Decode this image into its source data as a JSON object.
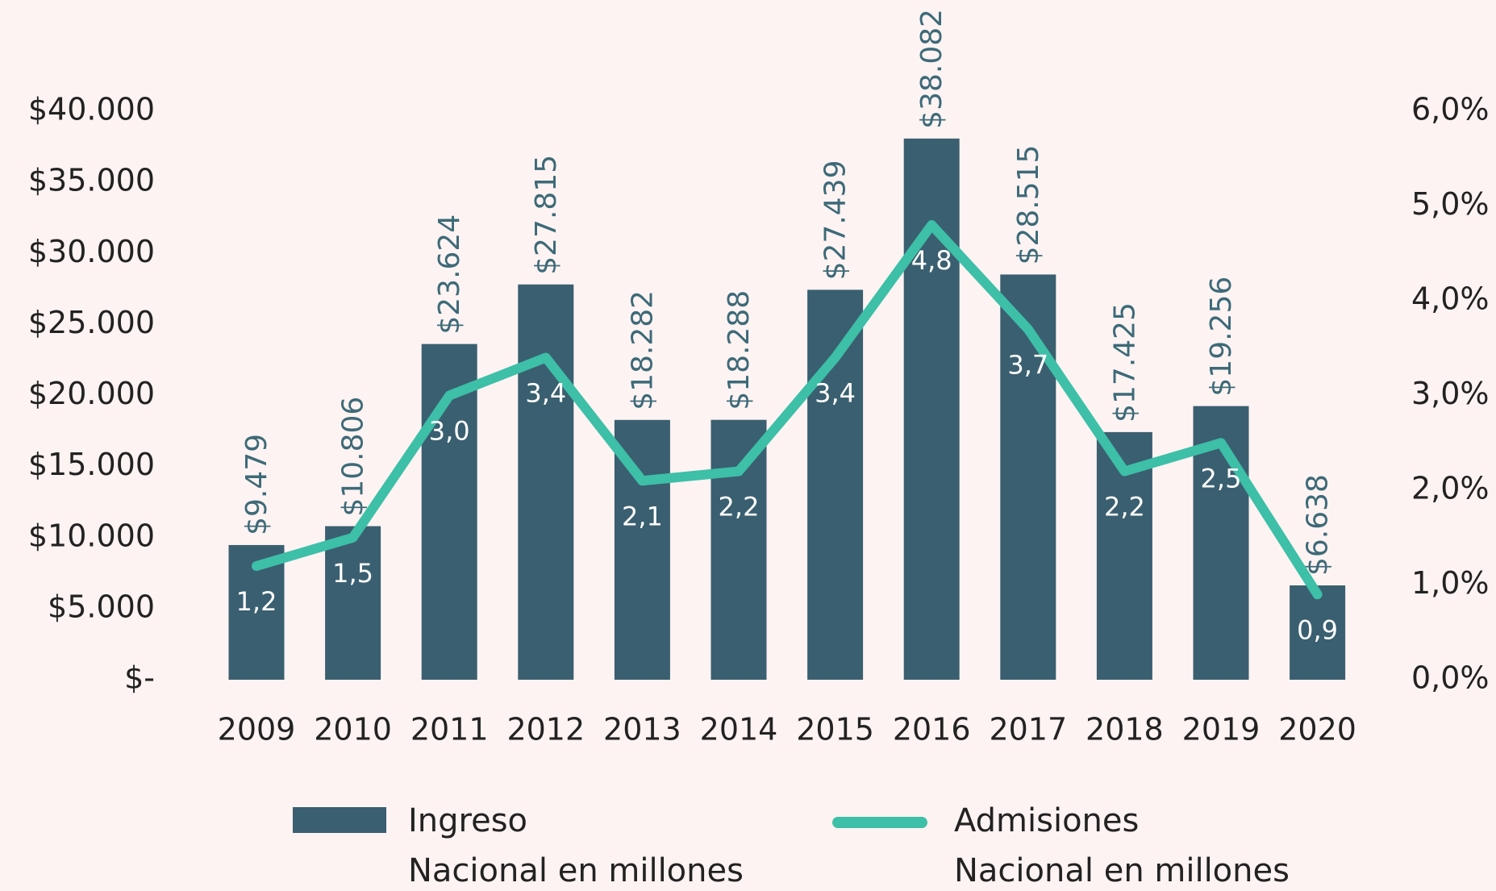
{
  "chart_data": {
    "type": "bar",
    "categories": [
      "2009",
      "2010",
      "2011",
      "2012",
      "2013",
      "2014",
      "2015",
      "2016",
      "2017",
      "2018",
      "2019",
      "2020"
    ],
    "series": [
      {
        "name": "Ingreso\nNacional en millones",
        "color": "#3a5f70",
        "type": "bar",
        "values": [
          9479,
          10806,
          23624,
          27815,
          18282,
          18288,
          27439,
          38082,
          28515,
          17425,
          19256,
          6638
        ],
        "value_labels": [
          "$9.479",
          "$10.806",
          "$23.624",
          "$27.815",
          "$18.282",
          "$18.288",
          "$27.439",
          "$38.082",
          "$28.515",
          "$17.425",
          "$19.256",
          "$6.638"
        ]
      },
      {
        "name": "Admisiones\nNacional en millones",
        "color": "#3dbfa8",
        "type": "line",
        "axis": "y2",
        "values": [
          1.2,
          1.5,
          3.0,
          3.4,
          2.1,
          2.2,
          3.4,
          4.8,
          3.7,
          2.2,
          2.5,
          0.9
        ],
        "value_labels": [
          "1,2",
          "1,5",
          "3,0",
          "3,4",
          "2,1",
          "2,2",
          "3,4",
          "4,8",
          "3,7",
          "2,2",
          "2,5",
          "0,9"
        ]
      }
    ],
    "ylim": [
      0,
      40000
    ],
    "yticks": [
      {
        "value": 0,
        "label": "$-"
      },
      {
        "value": 5000,
        "label": "$5.000"
      },
      {
        "value": 10000,
        "label": "$10.000"
      },
      {
        "value": 15000,
        "label": "$15.000"
      },
      {
        "value": 20000,
        "label": "$20.000"
      },
      {
        "value": 25000,
        "label": "$25.000"
      },
      {
        "value": 30000,
        "label": "$30.000"
      },
      {
        "value": 35000,
        "label": "$35.000"
      },
      {
        "value": 40000,
        "label": "$40.000"
      }
    ],
    "y2lim": [
      0,
      6
    ],
    "y2ticks": [
      {
        "value": 0,
        "label": "0,0%"
      },
      {
        "value": 1,
        "label": "1,0%"
      },
      {
        "value": 2,
        "label": "2,0%"
      },
      {
        "value": 3,
        "label": "3,0%"
      },
      {
        "value": 4,
        "label": "4,0%"
      },
      {
        "value": 5,
        "label": "5,0%"
      },
      {
        "value": 6,
        "label": "6,0%"
      }
    ],
    "grid": false
  }
}
